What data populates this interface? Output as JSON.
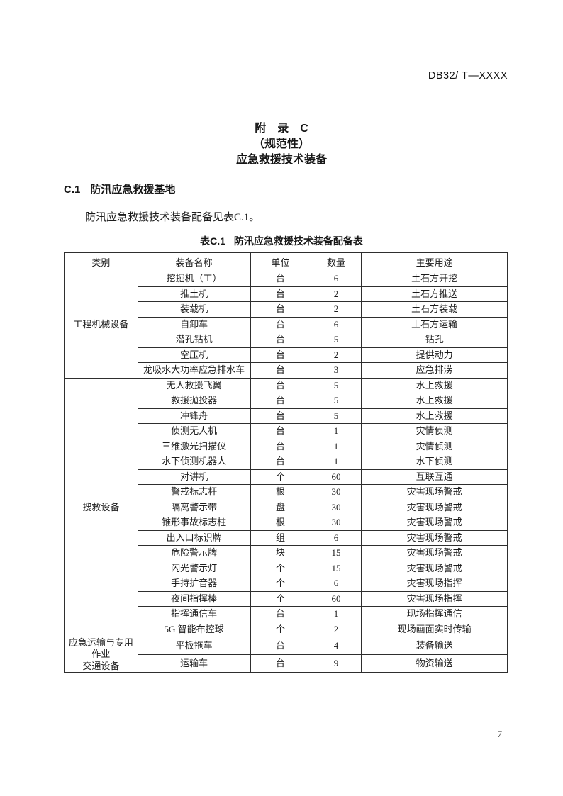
{
  "colors": {
    "background": "#ffffff",
    "ink": "#1c1c1c",
    "table_border": "#2e2e2e"
  },
  "page": {
    "header_right": "DB32/ T—XXXX",
    "page_number": "7"
  },
  "titles": {
    "appendix": "附　录　C",
    "normative": "（规范性）",
    "subtitle": "应急救援技术装备"
  },
  "section": {
    "number": "C.1",
    "title": "防汛应急救援基地"
  },
  "paragraph": "防汛应急救援技术装备配备见表C.1。",
  "table": {
    "caption_prefix": "表C.1",
    "caption_title": "防汛应急救援技术装备配备表",
    "headers": [
      "类别",
      "装备名称",
      "单位",
      "数量",
      "主要用途"
    ],
    "column_widths_pct": [
      16.6,
      25.4,
      13.6,
      11.5,
      32.9
    ],
    "groups": [
      {
        "category": "工程机械设备",
        "rows": [
          [
            "挖掘机（工）",
            "台",
            "6",
            "土石方开挖"
          ],
          [
            "推土机",
            "台",
            "2",
            "土石方推送"
          ],
          [
            "装载机",
            "台",
            "2",
            "土石方装载"
          ],
          [
            "自卸车",
            "台",
            "6",
            "土石方运输"
          ],
          [
            "潜孔钻机",
            "台",
            "5",
            "钻孔"
          ],
          [
            "空压机",
            "台",
            "2",
            "提供动力"
          ],
          [
            "龙吸水大功率应急排水车",
            "台",
            "3",
            "应急排涝"
          ]
        ]
      },
      {
        "category": "搜救设备",
        "rows": [
          [
            "无人救援飞翼",
            "台",
            "5",
            "水上救援"
          ],
          [
            "救援抛投器",
            "台",
            "5",
            "水上救援"
          ],
          [
            "冲锋舟",
            "台",
            "5",
            "水上救援"
          ],
          [
            "侦测无人机",
            "台",
            "1",
            "灾情侦测"
          ],
          [
            "三维激光扫描仪",
            "台",
            "1",
            "灾情侦测"
          ],
          [
            "水下侦测机器人",
            "台",
            "1",
            "水下侦测"
          ],
          [
            "对讲机",
            "个",
            "60",
            "互联互通"
          ],
          [
            "警戒标志杆",
            "根",
            "30",
            "灾害现场警戒"
          ],
          [
            "隔离警示带",
            "盘",
            "30",
            "灾害现场警戒"
          ],
          [
            "锥形事故标志柱",
            "根",
            "30",
            "灾害现场警戒"
          ],
          [
            "出入口标识牌",
            "组",
            "6",
            "灾害现场警戒"
          ],
          [
            "危险警示牌",
            "块",
            "15",
            "灾害现场警戒"
          ],
          [
            "闪光警示灯",
            "个",
            "15",
            "灾害现场警戒"
          ],
          [
            "手持扩音器",
            "个",
            "6",
            "灾害现场指挥"
          ],
          [
            "夜间指挥棒",
            "个",
            "60",
            "灾害现场指挥"
          ],
          [
            "指挥通信车",
            "台",
            "1",
            "现场指挥通信"
          ],
          [
            "5G 智能布控球",
            "个",
            "2",
            "现场画面实时传输"
          ]
        ]
      },
      {
        "category": "应急运输与专用作业\n交通设备",
        "rows": [
          [
            "平板拖车",
            "台",
            "4",
            "装备输送"
          ],
          [
            "运输车",
            "台",
            "9",
            "物资输送"
          ]
        ]
      }
    ]
  }
}
